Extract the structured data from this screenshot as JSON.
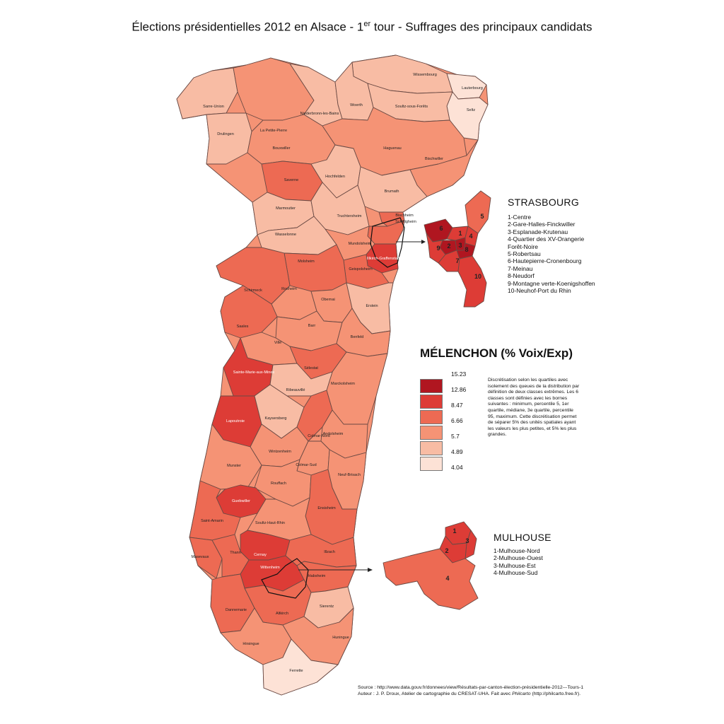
{
  "title": {
    "prefix": "Élections présidentielles 2012 en Alsace - 1",
    "sup": "er",
    "suffix": " tour - Suffrages des principaux candidats"
  },
  "colors": {
    "class1": "#b01620",
    "class2": "#dd3c36",
    "class3": "#ed6a53",
    "class4": "#f59375",
    "class5": "#f8bca4",
    "class6": "#fde2d6",
    "border": "#6b4a44",
    "arrow": "#222222"
  },
  "legend": {
    "title": "MÉLENCHON (% Voix/Exp)",
    "bounds": [
      "15.23",
      "12.86",
      "8.47",
      "6.66",
      "5.7",
      "4.89",
      "4.04"
    ],
    "note": "Discrétisation selon les quartiles avec isolement des queues de la distribution par définition de deux classes extrêmes. Les 6 classes sont définies avec les bornes suivantes : minimum, percentile 5, 1er quartile, médiane, 3e quartile, percentile 95, maximum. Cette discrétisation permet de séparer 5% des unités spatiales ayant les valeurs les plus petites, et 5% les plus grandes."
  },
  "strasbourg": {
    "title": "STRASBOURG",
    "items": [
      "1-Centre",
      "2-Gare-Halles-Finckwiller",
      "3-Esplanade-Krutenau",
      "4-Quartier des XV-Orangerie",
      "Forêt-Noire",
      "5-Robertsau",
      "6-Hautepierre-Cronenbourg",
      "7-Meinau",
      "8-Neudorf",
      "9-Montagne verte-Koenigshoffen",
      "10-Neuhof-Port du Rhin"
    ]
  },
  "mulhouse": {
    "title": "MULHOUSE",
    "items": [
      "1-Mulhouse-Nord",
      "2-Mulhouse-Ouest",
      "3-Mulhouse-Est",
      "4-Mulhouse-Sud"
    ]
  },
  "footer": {
    "source": "Source : http://www.data.gouv.fr/donnees/view/Résultats-par-canton-élection-présidentielle-2012---Tours-1",
    "author_prefix": "Auteur : J. P. Droux, Atelier de cartographie du CRESAT-UHA. Fait avec ",
    "author_brand": "Philcarto",
    "author_suffix": " (http://philcarto.free.fr)."
  },
  "cantons": [
    {
      "name": "Wissembourg",
      "cls": 5
    },
    {
      "name": "Lauterbourg",
      "cls": 6
    },
    {
      "name": "Seltz",
      "cls": 6
    },
    {
      "name": "Sarre-Union",
      "cls": 5
    },
    {
      "name": "Drulingen",
      "cls": 5
    },
    {
      "name": "La Petite-Pierre",
      "cls": 4
    },
    {
      "name": "Bouxwiller",
      "cls": 4
    },
    {
      "name": "Niederbronn-les-Bains",
      "cls": 5
    },
    {
      "name": "Woerth",
      "cls": 5
    },
    {
      "name": "Soultz-sous-Forêts",
      "cls": 5
    },
    {
      "name": "Haguenau",
      "cls": 4
    },
    {
      "name": "Bischwiller",
      "cls": 4
    },
    {
      "name": "Saverne",
      "cls": 3
    },
    {
      "name": "Hochfelden",
      "cls": 5
    },
    {
      "name": "Brumath",
      "cls": 5
    },
    {
      "name": "Marmoutier",
      "cls": 5
    },
    {
      "name": "Truchtersheim",
      "cls": 5
    },
    {
      "name": "Wasselonne",
      "cls": 5
    },
    {
      "name": "Bischheim",
      "cls": 3
    },
    {
      "name": "Schiltigheim",
      "cls": 3
    },
    {
      "name": "Mundolsheim",
      "cls": 4
    },
    {
      "name": "Illkirch-Graffenstaden",
      "cls": 2
    },
    {
      "name": "Geispolsheim",
      "cls": 3
    },
    {
      "name": "Molsheim",
      "cls": 3
    },
    {
      "name": "Schirmeck",
      "cls": 3
    },
    {
      "name": "Rosheim",
      "cls": 4
    },
    {
      "name": "Obernai",
      "cls": 4
    },
    {
      "name": "Erstein",
      "cls": 5
    },
    {
      "name": "Saales",
      "cls": 3
    },
    {
      "name": "Barr",
      "cls": 4
    },
    {
      "name": "Benfeld",
      "cls": 4
    },
    {
      "name": "Villé",
      "cls": 4
    },
    {
      "name": "Sélestat",
      "cls": 3
    },
    {
      "name": "Sainte-Marie-aux-Mines",
      "cls": 2
    },
    {
      "name": "Marckolsheim",
      "cls": 4
    },
    {
      "name": "Ribeauvillé",
      "cls": 5
    },
    {
      "name": "Lapoutroie",
      "cls": 2
    },
    {
      "name": "Kaysersberg",
      "cls": 5
    },
    {
      "name": "Colmar-Nord",
      "cls": 3
    },
    {
      "name": "Andolsheim",
      "cls": 4
    },
    {
      "name": "Wintzenheim",
      "cls": 4
    },
    {
      "name": "Munster",
      "cls": 4
    },
    {
      "name": "Colmar-Sud",
      "cls": 4
    },
    {
      "name": "Neuf-Brisach",
      "cls": 4
    },
    {
      "name": "Rouffach",
      "cls": 4
    },
    {
      "name": "Guebwiller",
      "cls": 2
    },
    {
      "name": "Ensisheim",
      "cls": 3
    },
    {
      "name": "Saint-Amarin",
      "cls": 3
    },
    {
      "name": "Soultz-Haut-Rhin",
      "cls": 4
    },
    {
      "name": "Cernay",
      "cls": 2
    },
    {
      "name": "Masevaux",
      "cls": 3
    },
    {
      "name": "Thann",
      "cls": 3
    },
    {
      "name": "Wittenheim",
      "cls": 2
    },
    {
      "name": "Illzach",
      "cls": 3
    },
    {
      "name": "Habsheim",
      "cls": 3
    },
    {
      "name": "Dannemarie",
      "cls": 3
    },
    {
      "name": "Altkirch",
      "cls": 3
    },
    {
      "name": "Sierentz",
      "cls": 5
    },
    {
      "name": "Hirsingue",
      "cls": 4
    },
    {
      "name": "Huningue",
      "cls": 4
    },
    {
      "name": "Ferrette",
      "cls": 6
    }
  ]
}
